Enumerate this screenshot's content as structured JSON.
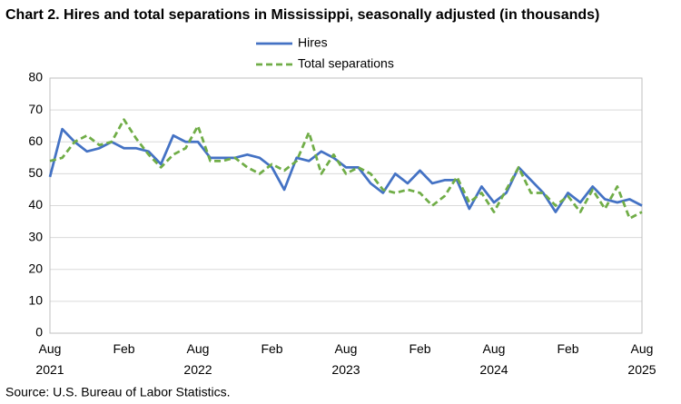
{
  "chart_data": {
    "type": "line",
    "title": "Chart 2. Hires and total separations in Mississippi, seasonally adjusted (in thousands)",
    "source": "Source: U.S. Bureau of Labor Statistics.",
    "categories": [
      "Aug 2021",
      null,
      null,
      null,
      null,
      null,
      "Feb",
      null,
      null,
      null,
      null,
      null,
      "Aug 2022",
      null,
      null,
      null,
      null,
      null,
      "Feb",
      null,
      null,
      null,
      null,
      null,
      "Aug 2023",
      null,
      null,
      null,
      null,
      null,
      "Feb",
      null,
      null,
      null,
      null,
      null,
      "Aug 2024",
      null,
      null,
      null,
      null,
      null,
      "Feb",
      null,
      null,
      null,
      null,
      null,
      "Aug 2025"
    ],
    "series": [
      {
        "name": "Hires",
        "color": "#4472c4",
        "dash": false,
        "values": [
          49,
          64,
          60,
          57,
          58,
          60,
          58,
          58,
          57,
          53,
          62,
          60,
          60,
          55,
          55,
          55,
          56,
          55,
          52,
          45,
          55,
          54,
          57,
          55,
          52,
          52,
          47,
          44,
          50,
          47,
          51,
          47,
          48,
          48,
          39,
          46,
          41,
          44,
          52,
          48,
          44,
          38,
          44,
          41,
          46,
          42,
          41,
          42,
          40
        ]
      },
      {
        "name": "Total separations",
        "color": "#70ad47",
        "dash": true,
        "values": [
          54,
          55,
          60,
          62,
          59,
          60,
          67,
          61,
          56,
          52,
          56,
          58,
          65,
          54,
          54,
          55,
          52,
          50,
          53,
          51,
          54,
          63,
          50,
          56,
          50,
          52,
          50,
          45,
          44,
          45,
          44,
          40,
          43,
          49,
          41,
          44,
          38,
          45,
          52,
          44,
          44,
          40,
          43,
          38,
          45,
          39,
          46,
          36,
          38
        ]
      }
    ],
    "ylim": [
      0,
      80
    ],
    "yticks": [
      0,
      10,
      20,
      30,
      40,
      50,
      60,
      70,
      80
    ],
    "grid": true,
    "legend": "top"
  }
}
